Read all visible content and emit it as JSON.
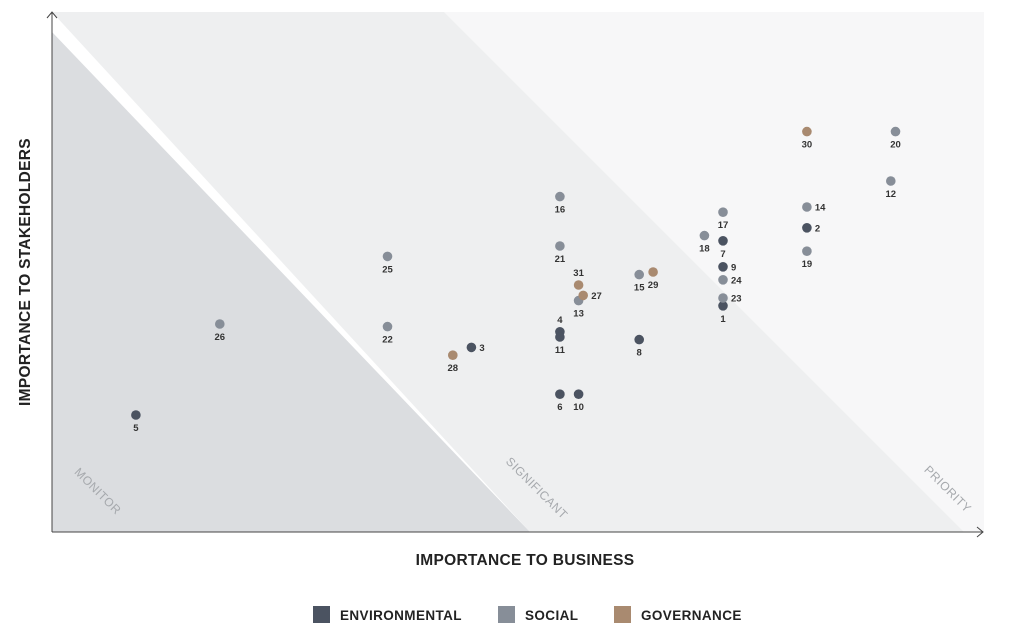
{
  "chart_data": {
    "type": "scatter",
    "title": "",
    "xlabel": "IMPORTANCE TO BUSINESS",
    "ylabel": "IMPORTANCE TO STAKEHOLDERS",
    "xlim": [
      0,
      100
    ],
    "ylim": [
      0,
      100
    ],
    "grid": false,
    "legend_position": "bottom-center",
    "zones": [
      {
        "name": "MONITOR",
        "color": "#dbdde0"
      },
      {
        "name": "SIGNIFICANT",
        "color": "#eeeff0"
      },
      {
        "name": "PRIORITY",
        "color": "#f7f7f8"
      }
    ],
    "series": [
      {
        "name": "ENVIRONMENTAL",
        "color": "#4b5361",
        "points": [
          {
            "label": "1",
            "x": 72,
            "y": 43.5
          },
          {
            "label": "2",
            "x": 81,
            "y": 58.5
          },
          {
            "label": "3",
            "x": 45,
            "y": 35.5
          },
          {
            "label": "4",
            "x": 54.5,
            "y": 38.5
          },
          {
            "label": "5",
            "x": 9,
            "y": 22.5
          },
          {
            "label": "6",
            "x": 54.5,
            "y": 26.5
          },
          {
            "label": "7",
            "x": 72,
            "y": 56
          },
          {
            "label": "8",
            "x": 63,
            "y": 37
          },
          {
            "label": "9",
            "x": 72,
            "y": 51
          },
          {
            "label": "10",
            "x": 56.5,
            "y": 26.5
          },
          {
            "label": "11",
            "x": 54.5,
            "y": 37.5
          }
        ]
      },
      {
        "name": "SOCIAL",
        "color": "#878e98",
        "points": [
          {
            "label": "12",
            "x": 90,
            "y": 67.5
          },
          {
            "label": "13",
            "x": 56.5,
            "y": 44.5
          },
          {
            "label": "14",
            "x": 81,
            "y": 62.5
          },
          {
            "label": "15",
            "x": 63,
            "y": 49.5
          },
          {
            "label": "16",
            "x": 54.5,
            "y": 64.5
          },
          {
            "label": "17",
            "x": 72,
            "y": 61.5
          },
          {
            "label": "18",
            "x": 70,
            "y": 57
          },
          {
            "label": "19",
            "x": 81,
            "y": 54
          },
          {
            "label": "20",
            "x": 90.5,
            "y": 77
          },
          {
            "label": "21",
            "x": 54.5,
            "y": 55
          },
          {
            "label": "22",
            "x": 36,
            "y": 39.5
          },
          {
            "label": "23",
            "x": 72,
            "y": 45
          },
          {
            "label": "24",
            "x": 72,
            "y": 48.5
          },
          {
            "label": "25",
            "x": 36,
            "y": 53
          },
          {
            "label": "26",
            "x": 18,
            "y": 40
          }
        ]
      },
      {
        "name": "GOVERNANCE",
        "color": "#a98a70",
        "points": [
          {
            "label": "27",
            "x": 57,
            "y": 45.5
          },
          {
            "label": "28",
            "x": 43,
            "y": 34
          },
          {
            "label": "29",
            "x": 64.5,
            "y": 50
          },
          {
            "label": "30",
            "x": 81,
            "y": 77
          },
          {
            "label": "31",
            "x": 56.5,
            "y": 47.5
          }
        ]
      }
    ]
  }
}
